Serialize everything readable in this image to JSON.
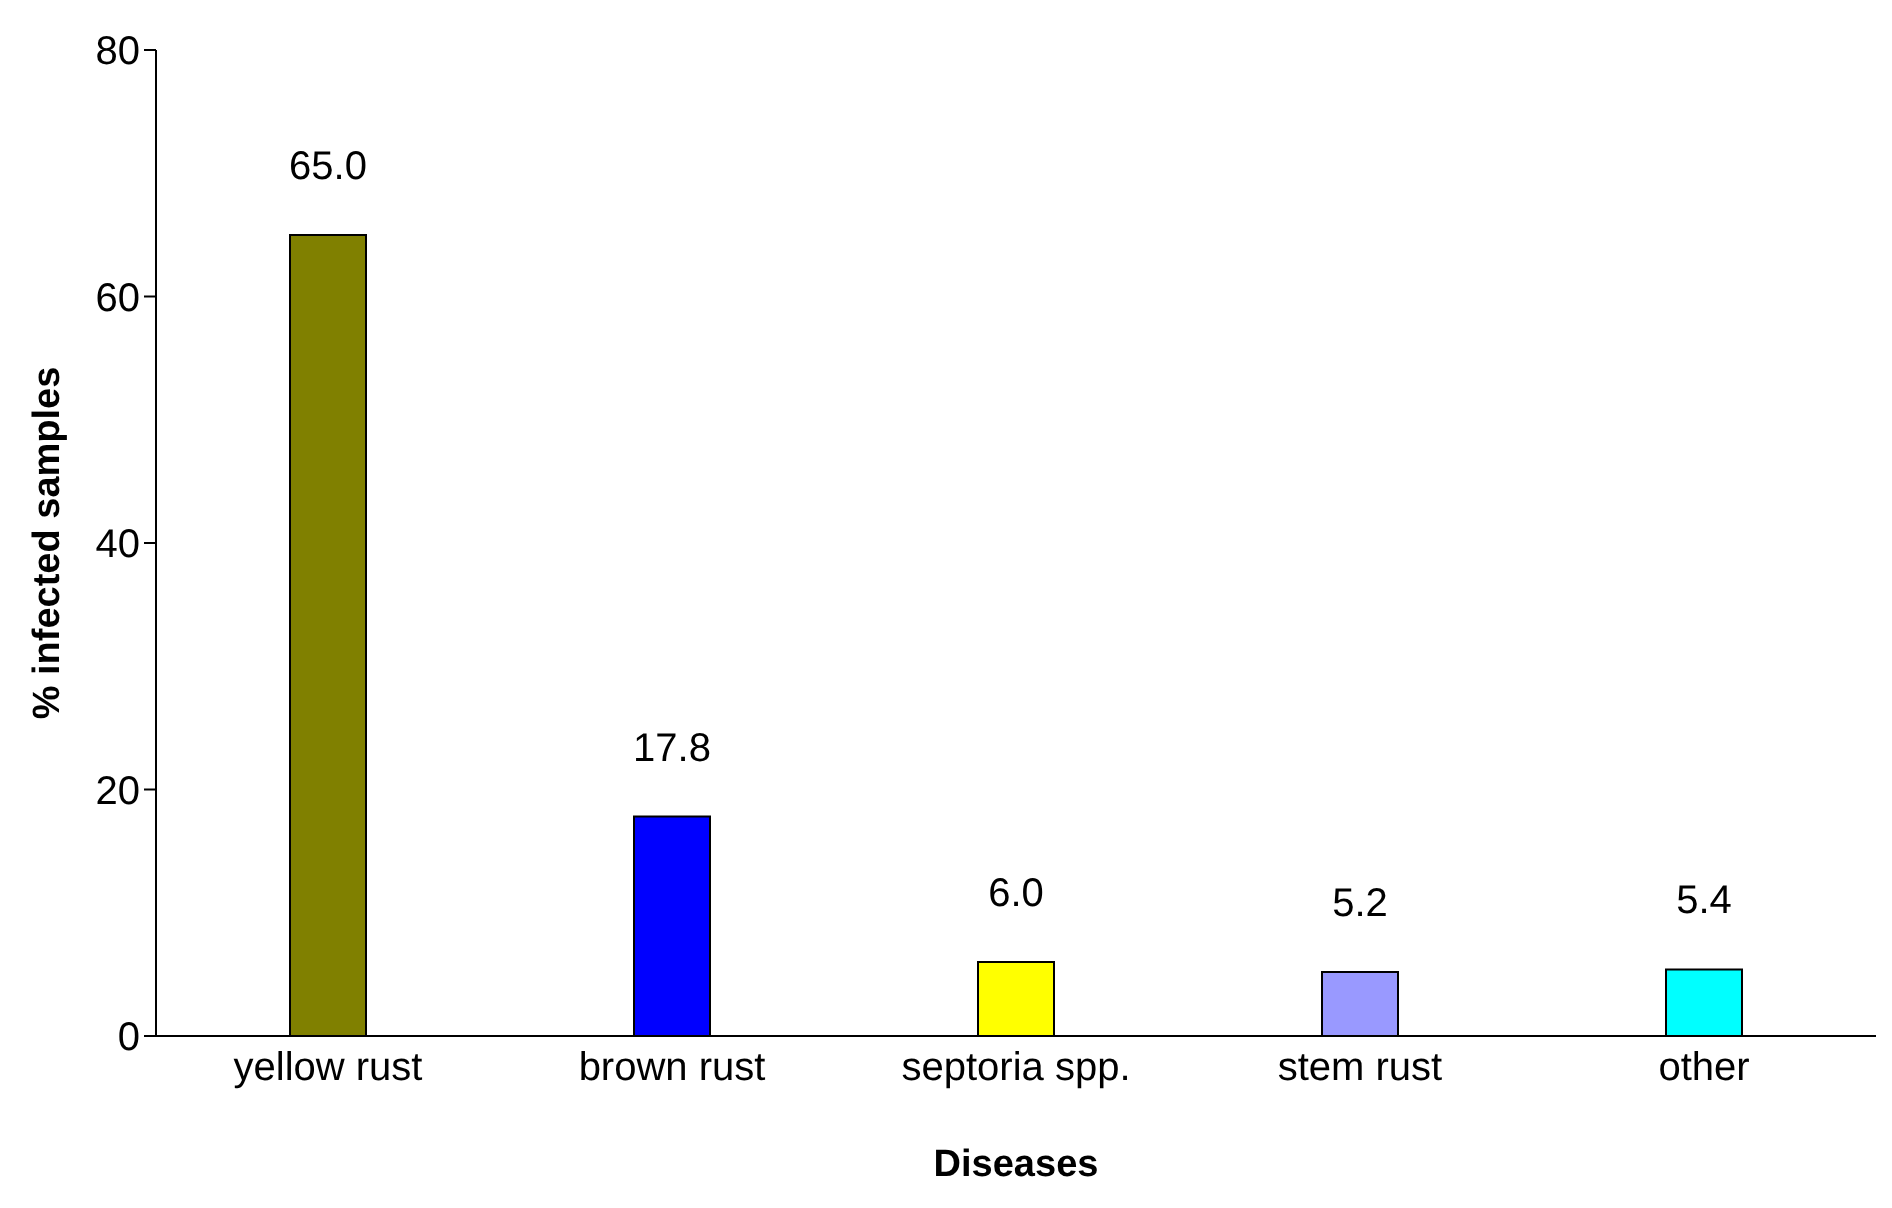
{
  "chart_data": {
    "type": "bar",
    "xlabel": "Diseases",
    "ylabel": "% infected samples",
    "categories": [
      "yellow rust",
      "brown rust",
      "septoria spp.",
      "stem rust",
      "other"
    ],
    "values": [
      65.0,
      17.8,
      6.0,
      5.2,
      5.4
    ],
    "value_labels": [
      "65.0",
      "17.8",
      "6.0",
      "5.2",
      "5.4"
    ],
    "colors": [
      "#808000",
      "#0000ff",
      "#ffff00",
      "#9999ff",
      "#00ffff"
    ],
    "ylim": [
      0,
      80
    ],
    "yticks": [
      0,
      20,
      40,
      60,
      80
    ],
    "grid": false,
    "legend": false
  }
}
